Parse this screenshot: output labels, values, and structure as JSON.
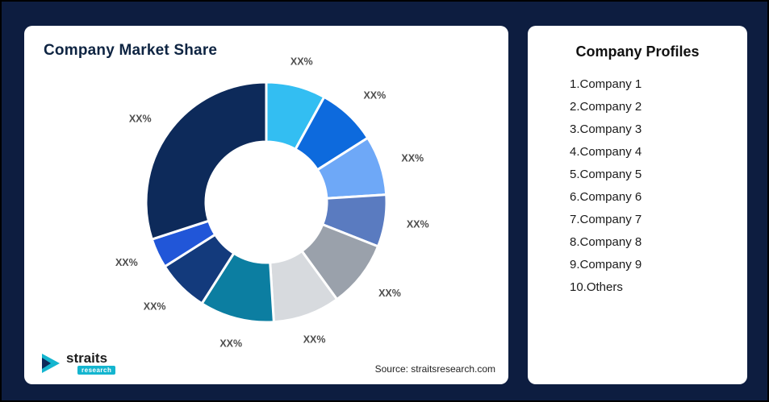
{
  "page": {
    "background": "#0d1d40"
  },
  "chart_card": {
    "title": "Company Market Share",
    "source": "Source: straitsresearch.com",
    "logo": {
      "name": "straits",
      "sub": "research"
    }
  },
  "chart_data": {
    "type": "pie",
    "subtype": "donut",
    "title": "Company Market Share",
    "inner_radius_ratio": 0.5,
    "start_angle_deg": -90,
    "direction": "clockwise",
    "labels": [
      "XX%",
      "XX%",
      "XX%",
      "XX%",
      "XX%",
      "XX%",
      "XX%",
      "XX%",
      "XX%",
      "XX%"
    ],
    "values": [
      8,
      8,
      8,
      7,
      9,
      9,
      10,
      7,
      4,
      30
    ],
    "colors": [
      "#33bef2",
      "#0d6add",
      "#6ea8f7",
      "#5a7bc0",
      "#9aa1ab",
      "#d7dade",
      "#0c7ea1",
      "#133a7c",
      "#2156d8",
      "#0d2a5a"
    ],
    "label_color": "#4d4d4d",
    "segment_gap_stroke": "#ffffff"
  },
  "profiles_card": {
    "title": "Company Profiles",
    "items": [
      "1.Company 1",
      "2.Company 2",
      "3.Company 3",
      "4.Company 4",
      "5.Company 5",
      "6.Company 6",
      "7.Company 7",
      "8.Company 8",
      "9.Company 9",
      "10.Others"
    ]
  }
}
